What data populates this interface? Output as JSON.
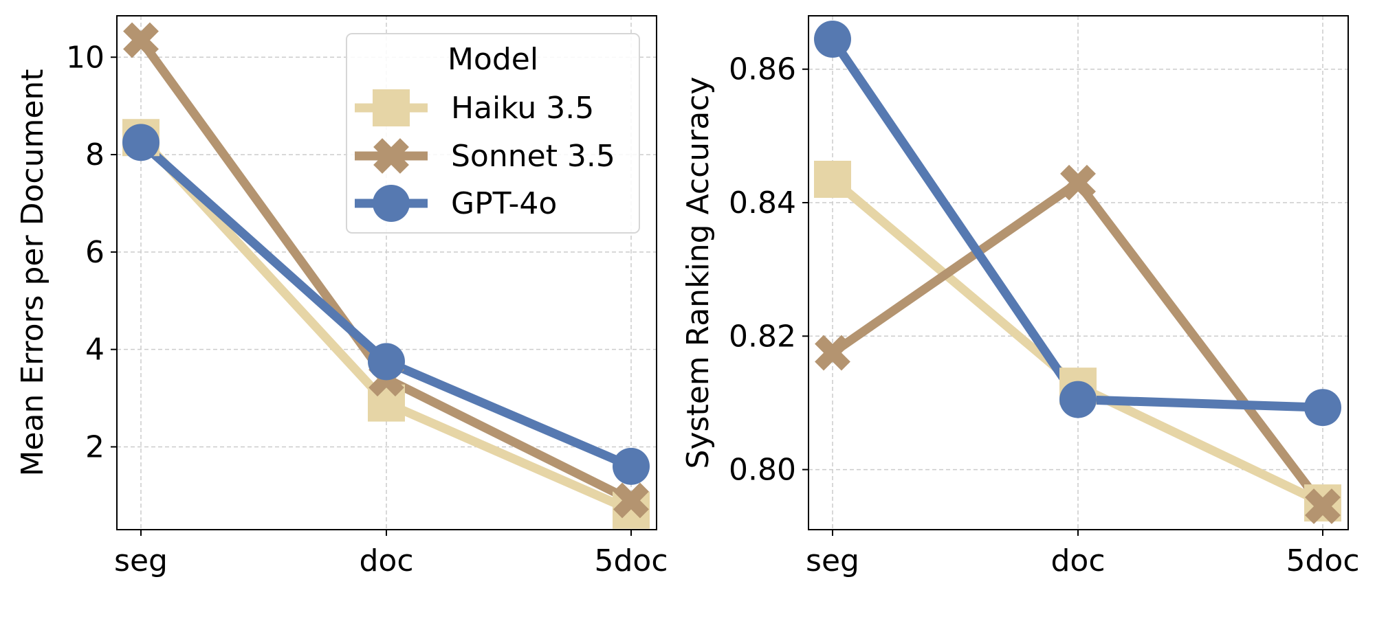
{
  "legend": {
    "title": "Model"
  },
  "chart_data": [
    {
      "type": "line",
      "xlabel": "",
      "ylabel": "Mean Errors per Document",
      "categories": [
        "seg",
        "doc",
        "5doc"
      ],
      "ylim": [
        0.3,
        10.85
      ],
      "yticks": [
        "2",
        "4",
        "6",
        "8",
        "10"
      ],
      "grid": true,
      "legend_position": "upper-right",
      "series": [
        {
          "name": "Haiku 3.5",
          "values": [
            8.35,
            2.9,
            0.7
          ]
        },
        {
          "name": "Sonnet 3.5",
          "values": [
            10.35,
            3.4,
            0.9
          ]
        },
        {
          "name": "GPT-4o",
          "values": [
            8.25,
            3.75,
            1.6
          ]
        }
      ]
    },
    {
      "type": "line",
      "xlabel": "",
      "ylabel": "System Ranking Accuracy",
      "categories": [
        "seg",
        "doc",
        "5doc"
      ],
      "ylim": [
        0.791,
        0.868
      ],
      "yticks": [
        "0.80",
        "0.82",
        "0.84",
        "0.86"
      ],
      "grid": true,
      "series": [
        {
          "name": "Haiku 3.5",
          "values": [
            0.8435,
            0.8125,
            0.795
          ]
        },
        {
          "name": "Sonnet 3.5",
          "values": [
            0.8175,
            0.843,
            0.7945
          ]
        },
        {
          "name": "GPT-4o",
          "values": [
            0.8645,
            0.8105,
            0.8093
          ]
        }
      ]
    }
  ],
  "styles": {
    "series": [
      {
        "name": "Haiku 3.5",
        "color": "#e6d5a6",
        "marker": "square"
      },
      {
        "name": "Sonnet 3.5",
        "color": "#b49470",
        "marker": "x"
      },
      {
        "name": "GPT-4o",
        "color": "#5679b1",
        "marker": "circle"
      }
    ]
  }
}
